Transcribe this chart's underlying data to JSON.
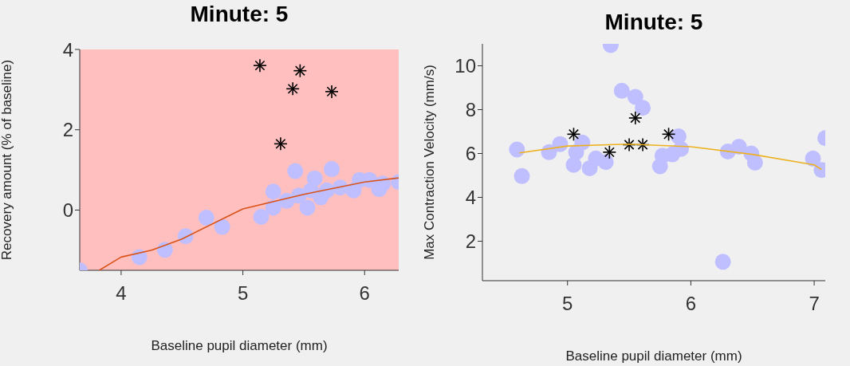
{
  "chart_data": [
    {
      "type": "scatter",
      "title": "Minute: 5",
      "xlabel": "Baseline pupil diameter (mm)",
      "ylabel": "Recovery amount (% of baseline)",
      "xlim": [
        3.66,
        6.28
      ],
      "xticks": [
        4,
        5,
        6
      ],
      "ylim": [
        -1.5,
        4
      ],
      "yticks": [
        0,
        2,
        4
      ],
      "grid": false,
      "legend": false,
      "bands": [
        {
          "axis": "y",
          "from": -1.5,
          "to": 4,
          "color": "#ffbfbf"
        }
      ],
      "series": [
        {
          "type": "scatter",
          "marker": "circle",
          "color": "#bfbfff",
          "x": [
            3.66,
            4.15,
            4.36,
            4.53,
            4.7,
            4.83,
            5.15,
            5.25,
            5.25,
            5.36,
            5.43,
            5.46,
            5.53,
            5.59,
            5.56,
            5.64,
            5.69,
            5.73,
            5.8,
            5.91,
            5.96,
            6.04,
            6.12,
            6.15,
            6.28
          ],
          "values": [
            -1.5,
            -1.17,
            -0.99,
            -0.65,
            -0.19,
            -0.42,
            -0.17,
            0.46,
            0.06,
            0.23,
            0.97,
            0.36,
            0.06,
            0.79,
            0.49,
            0.32,
            0.49,
            1.02,
            0.56,
            0.49,
            0.75,
            0.75,
            0.52,
            0.66,
            0.7
          ]
        },
        {
          "type": "scatter",
          "marker": "cross",
          "color": "#000000",
          "x": [
            5.14,
            5.47,
            5.41,
            5.73,
            5.31
          ],
          "values": [
            3.6,
            3.47,
            3.02,
            2.95,
            1.65
          ]
        },
        {
          "type": "line",
          "marker": "none",
          "color": "#d95319",
          "x": [
            3.82,
            4.0,
            4.25,
            4.5,
            5.0,
            5.5,
            6.0,
            6.28
          ],
          "values": [
            -1.5,
            -1.17,
            -1.0,
            -0.72,
            0.03,
            0.39,
            0.7,
            0.8
          ]
        }
      ]
    },
    {
      "type": "scatter",
      "title": "Minute: 5",
      "xlabel": "Baseline pupil diameter (mm)",
      "ylabel": "Max Contraction Velocity (mm/s)",
      "xlim": [
        4.31,
        7.09
      ],
      "xticks": [
        5,
        6,
        7
      ],
      "ylim": [
        0.2,
        11
      ],
      "yticks": [
        2,
        4,
        6,
        8,
        10
      ],
      "grid": false,
      "legend": false,
      "series": [
        {
          "type": "scatter",
          "marker": "circle",
          "color": "#bfbfff",
          "x": [
            4.59,
            4.63,
            4.85,
            4.94,
            5.05,
            5.07,
            5.12,
            5.18,
            5.23,
            5.31,
            5.35,
            5.44,
            5.55,
            5.61,
            5.75,
            5.77,
            5.85,
            5.9,
            5.92,
            6.3,
            6.39,
            6.49,
            6.52,
            6.26,
            6.99,
            7.06,
            7.09
          ],
          "values": [
            6.18,
            4.97,
            6.06,
            6.43,
            5.48,
            6.06,
            6.5,
            5.33,
            5.77,
            5.61,
            10.95,
            8.86,
            8.58,
            8.08,
            5.42,
            5.9,
            5.96,
            6.78,
            6.21,
            6.09,
            6.31,
            6.0,
            5.58,
            1.06,
            5.77,
            5.25,
            6.7
          ]
        },
        {
          "type": "scatter",
          "marker": "cross",
          "color": "#000000",
          "x": [
            5.05,
            5.34,
            5.5,
            5.55,
            5.61,
            5.82
          ],
          "values": [
            6.88,
            6.06,
            6.4,
            7.62,
            6.4,
            6.88
          ]
        },
        {
          "type": "line",
          "marker": "none",
          "color": "#edb120",
          "x": [
            4.61,
            5.0,
            5.5,
            6.0,
            6.5,
            7.0,
            7.06
          ],
          "values": [
            6.03,
            6.34,
            6.43,
            6.31,
            5.96,
            5.48,
            5.27
          ]
        }
      ]
    }
  ]
}
